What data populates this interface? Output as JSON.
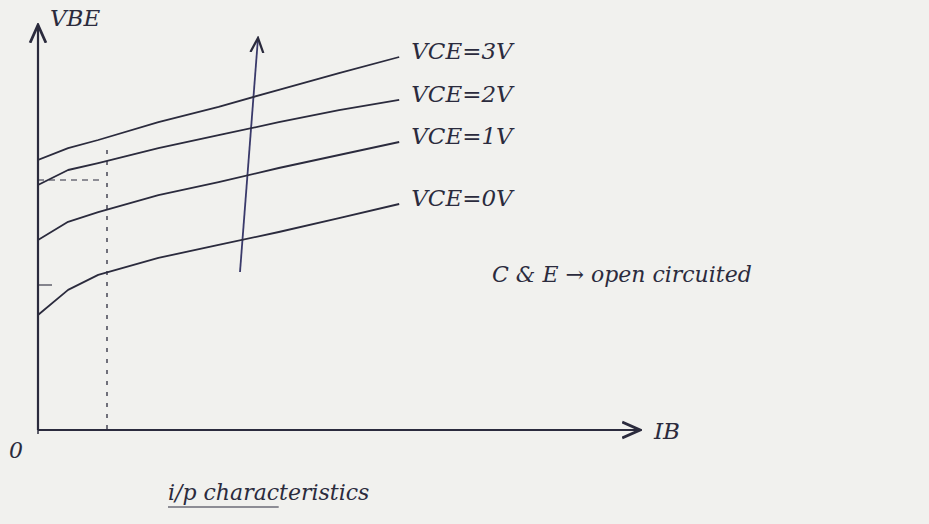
{
  "chart_data": {
    "type": "line",
    "title": "i/p characteristics",
    "x_label": "IB",
    "y_label": "VBE",
    "annotations": [
      "C & E → open circuited"
    ],
    "x": [
      0,
      0.5,
      1,
      2,
      3,
      4,
      5,
      6
    ],
    "series": [
      {
        "name": "VCE=3V",
        "color": "#2b2b3d",
        "values": [
          6.67,
          6.96,
          7.16,
          7.6,
          7.98,
          8.4,
          8.81,
          9.21
        ]
      },
      {
        "name": "VCE=2V",
        "color": "#2b2b3d",
        "values": [
          6.05,
          6.42,
          6.59,
          6.96,
          7.28,
          7.6,
          7.9,
          8.15
        ]
      },
      {
        "name": "VCE=1V",
        "color": "#2b2b3d",
        "values": [
          4.69,
          5.14,
          5.38,
          5.8,
          6.12,
          6.47,
          6.79,
          7.11
        ]
      },
      {
        "name": "VCE=0V",
        "color": "#2b2b3d",
        "values": [
          2.84,
          3.46,
          3.83,
          4.25,
          4.57,
          4.89,
          5.23,
          5.58
        ]
      }
    ],
    "xlim": [
      0,
      10
    ],
    "ylim": [
      0,
      10
    ],
    "xticks": [
      0
    ],
    "tick_labels": "x",
    "grid": false
  }
}
